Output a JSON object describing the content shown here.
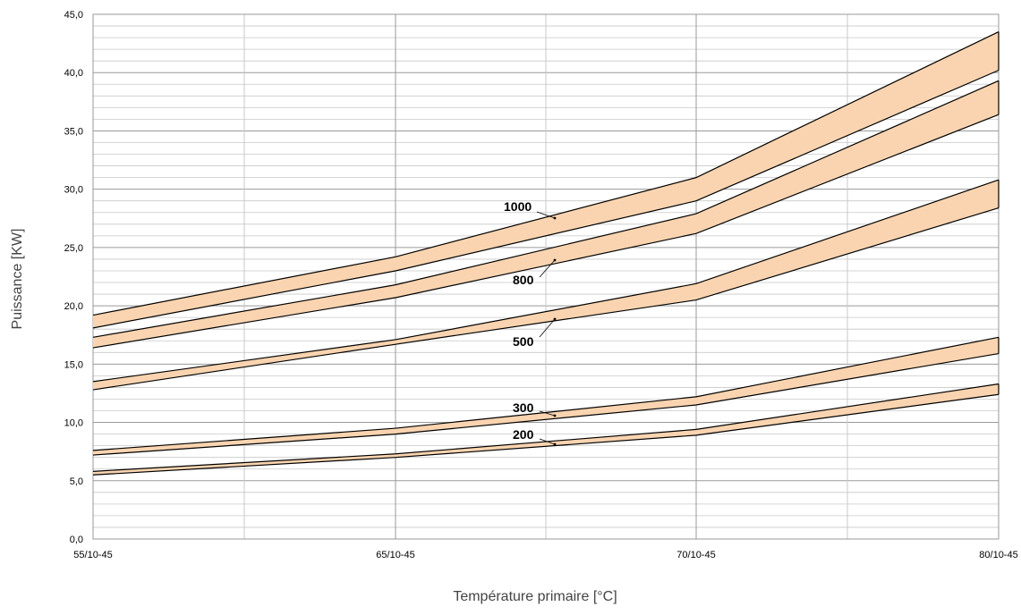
{
  "chart_data": {
    "type": "area",
    "title": "",
    "xlabel": "Température primaire [°C]",
    "ylabel": "Puissance [KW]",
    "categories": [
      "55/10-45",
      "65/10-45",
      "70/10-45",
      "80/10-45"
    ],
    "ylim": [
      0,
      45
    ],
    "yticks": [
      "0,0",
      "5,0",
      "10,0",
      "15,0",
      "20,0",
      "25,0",
      "30,0",
      "35,0",
      "40,0",
      "45,0"
    ],
    "grid": true,
    "band_color": "#fad4b0",
    "series": [
      {
        "name": "1000",
        "lower": [
          18.1,
          23.0,
          29.0,
          40.2
        ],
        "upper": [
          19.2,
          24.2,
          31.0,
          43.5
        ]
      },
      {
        "name": "800",
        "lower": [
          16.4,
          20.7,
          26.2,
          36.4
        ],
        "upper": [
          17.3,
          21.8,
          27.9,
          39.3
        ]
      },
      {
        "name": "500",
        "lower": [
          12.8,
          16.7,
          20.5,
          28.4
        ],
        "upper": [
          13.5,
          17.1,
          21.9,
          30.8
        ]
      },
      {
        "name": "300",
        "lower": [
          7.2,
          9.0,
          11.5,
          15.9
        ],
        "upper": [
          7.6,
          9.5,
          12.2,
          17.3
        ]
      },
      {
        "name": "200",
        "lower": [
          5.5,
          7.0,
          8.9,
          12.4
        ],
        "upper": [
          5.8,
          7.3,
          9.4,
          13.3
        ]
      }
    ]
  }
}
